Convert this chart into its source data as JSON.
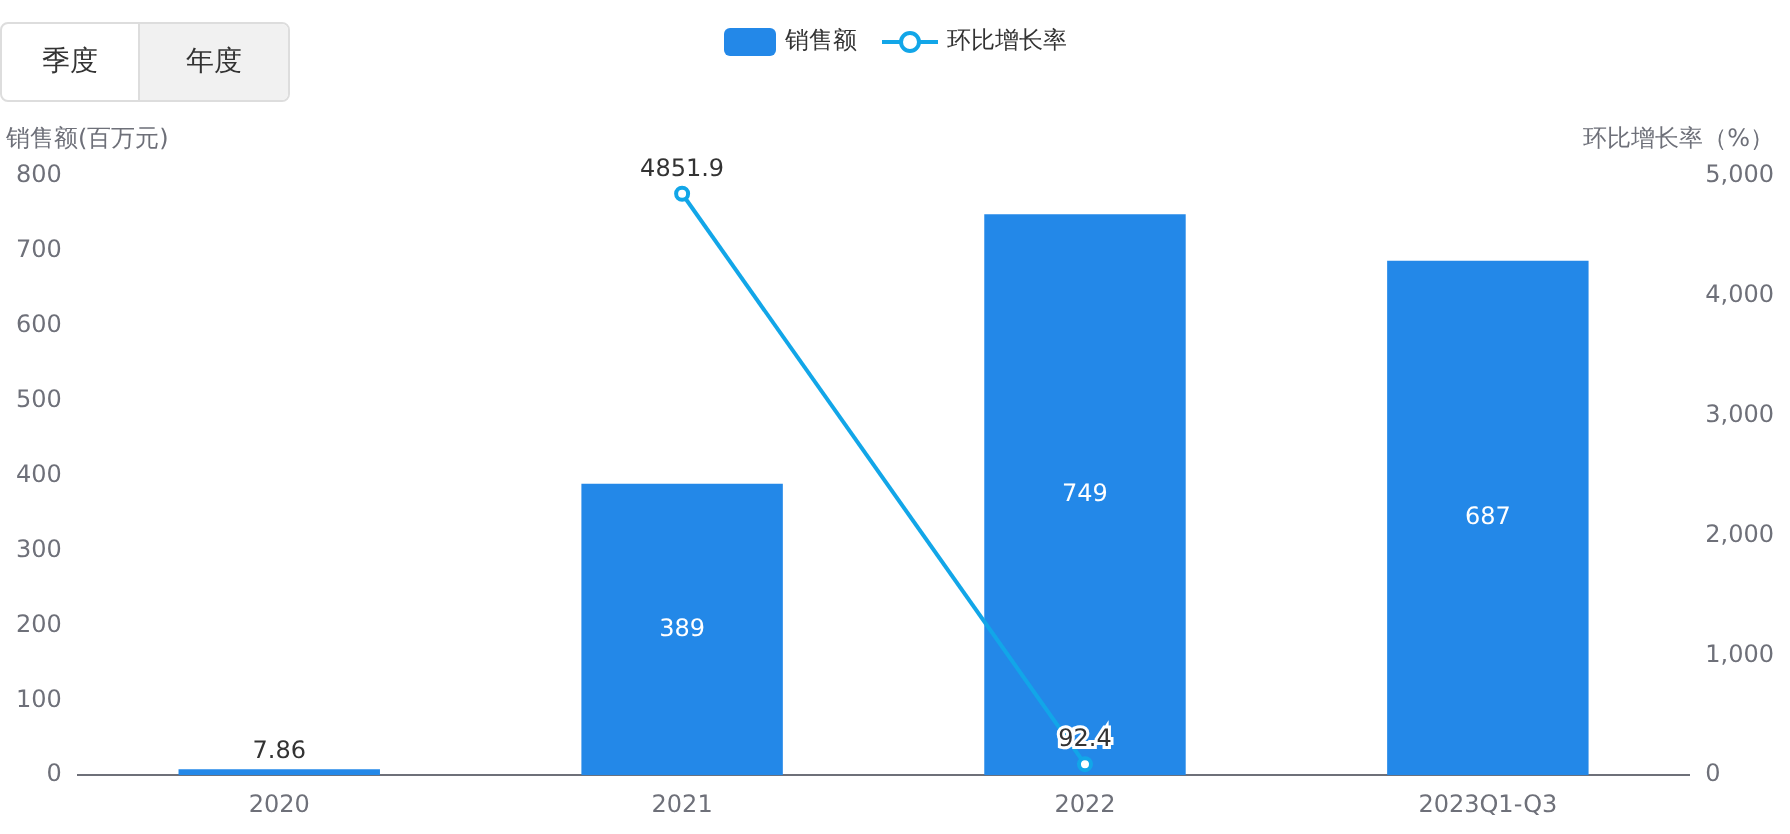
{
  "chart_data": {
    "type": "bar",
    "categories": [
      "2020",
      "2021",
      "2022",
      "2023Q1-Q3"
    ],
    "ylabel": "销售额(百万元)",
    "y2label": "环比增长率（%）",
    "series": [
      {
        "name": "销售额",
        "color": "#2388e8",
        "values": [
          7.86,
          389,
          749,
          687
        ]
      },
      {
        "name": "环比增长率",
        "type": "line",
        "axis": "y2",
        "color": "#12a6e8",
        "values": [
          null,
          4851.9,
          92.4,
          null
        ]
      }
    ],
    "ylim": [
      0,
      800
    ],
    "yticks": [
      0,
      100,
      200,
      300,
      400,
      500,
      600,
      700,
      800
    ],
    "y2lim": [
      0,
      5000
    ],
    "y2ticks": [
      0,
      {
        "value": 1000,
        "label": "1,000"
      },
      {
        "value": 2000,
        "label": "2,000"
      },
      {
        "value": 3000,
        "label": "3,000"
      },
      {
        "value": 4000,
        "label": "4,000"
      },
      {
        "value": 5000,
        "label": "5,000"
      }
    ],
    "data_labels": true,
    "legend": "top",
    "grid": false,
    "marker": "circle",
    "line_style": "solid",
    "annotations": [
      "季度",
      "年度"
    ]
  }
}
